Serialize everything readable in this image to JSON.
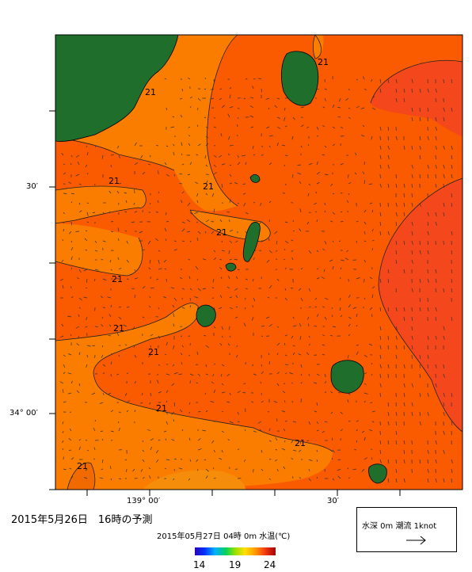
{
  "title": "2015年5月26日　16時の予測",
  "subtitle": "2015年05月27日 04時 0m 水温(℃)",
  "axes": {
    "y_ticks": [
      "30′",
      "34° 00′"
    ],
    "x_ticks": [
      "139° 00′",
      "30′"
    ]
  },
  "contour_labels": [
    "21",
    "21",
    "21",
    "21",
    "21",
    "21",
    "21",
    "21",
    "21",
    "21",
    "21"
  ],
  "legend": {
    "label": "水深 0m 潮流 1knot",
    "arrow_icon": "arrow-right-icon"
  },
  "colorbar": {
    "ticks": [
      "14",
      "19",
      "24"
    ]
  },
  "colors": {
    "land": "#1f6e2b",
    "warm": "#fa5a00",
    "warmer": "#f4471b",
    "cool": "#fa7d00",
    "cooler": "#f58c0a"
  }
}
